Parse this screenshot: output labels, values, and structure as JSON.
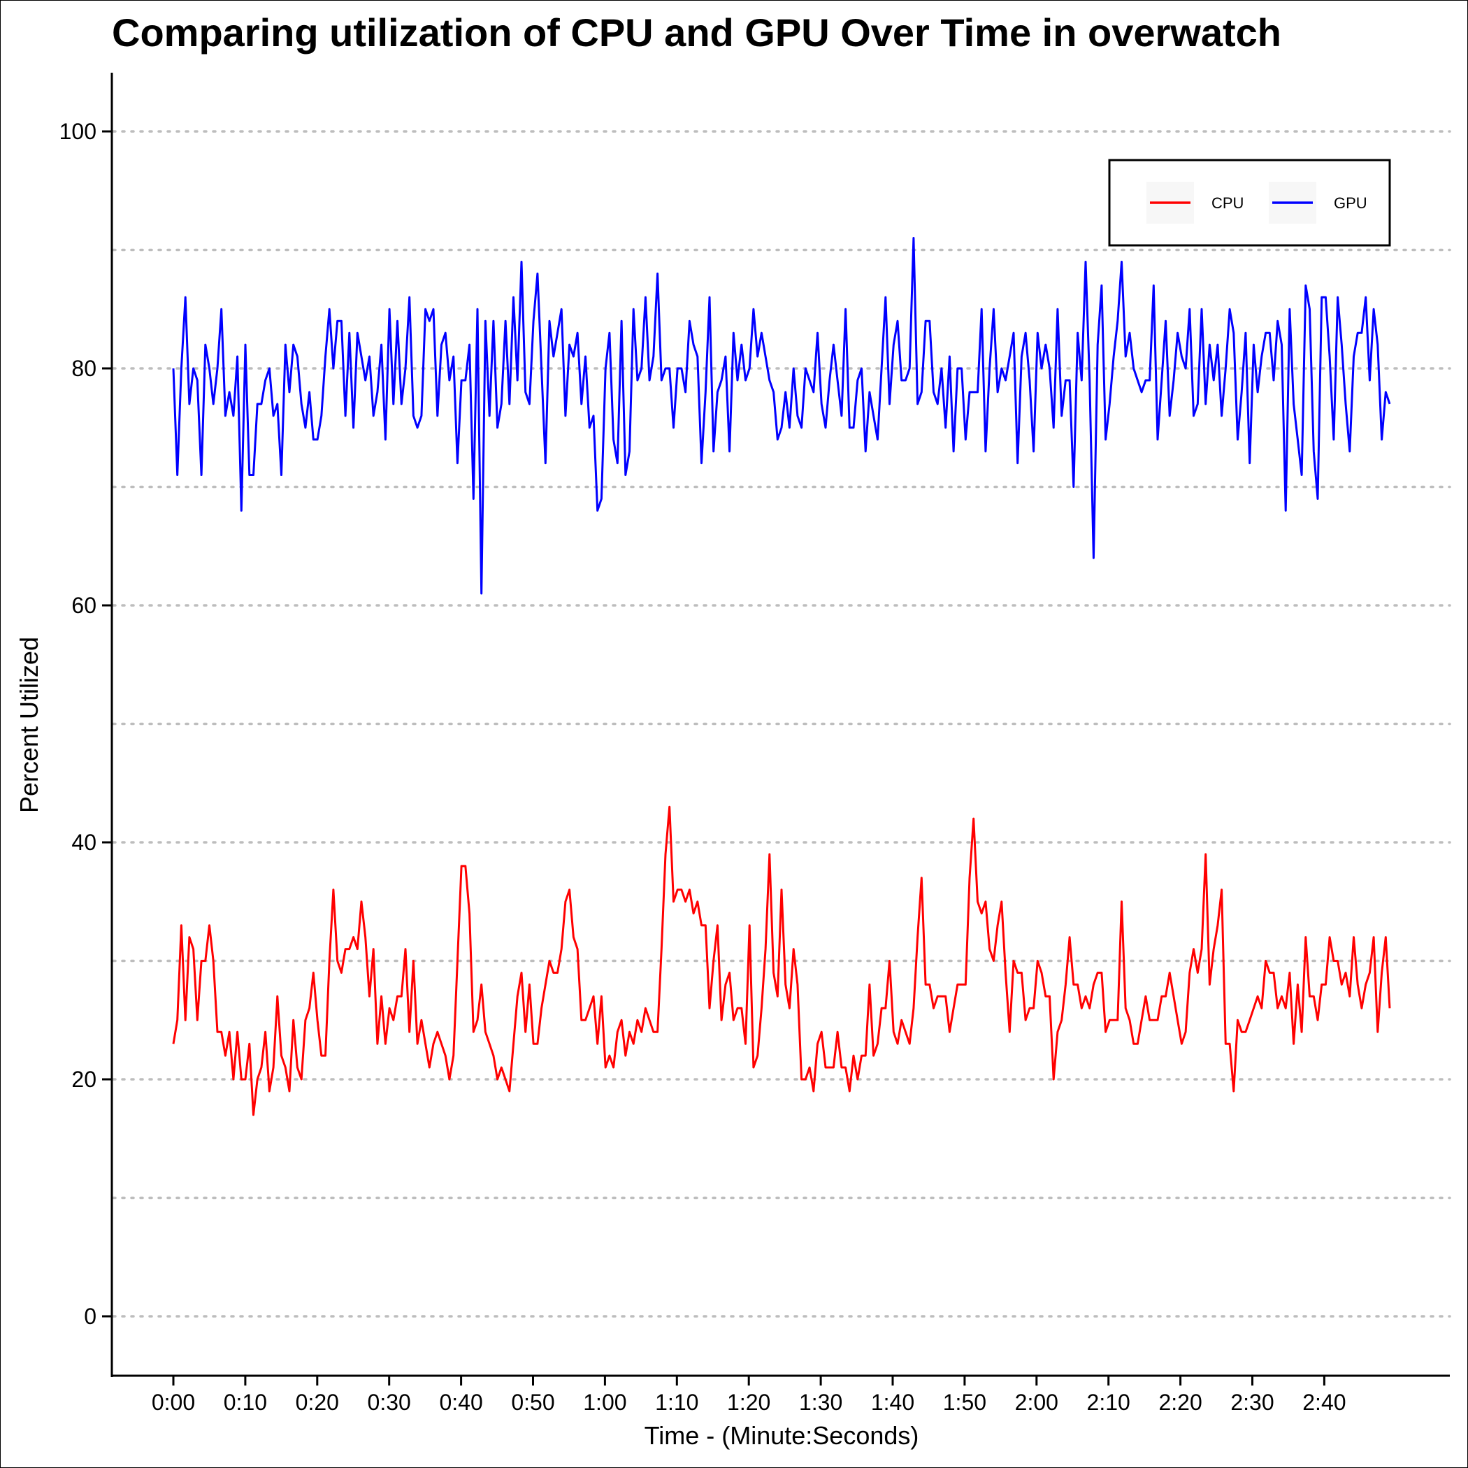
{
  "chart_data": {
    "type": "line",
    "title": "Comparing utilization of CPU and GPU Over Time in overwatch",
    "xlabel": "Time - (Minute:Seconds)",
    "ylabel": "Percent Utilized",
    "x_range_seconds": [
      0,
      170
    ],
    "ylim": [
      0,
      100
    ],
    "x_ticks": [
      "0:00",
      "0:10",
      "0:20",
      "0:30",
      "0:40",
      "0:50",
      "1:00",
      "1:10",
      "1:20",
      "1:30",
      "1:40",
      "1:50",
      "2:00",
      "2:10",
      "2:20",
      "2:30",
      "2:40"
    ],
    "y_ticks": [
      0,
      20,
      40,
      60,
      80,
      100
    ],
    "grid": "horizontal dotted",
    "legend_placement": "top-right",
    "series": [
      {
        "name": "CPU",
        "color": "#ff0000",
        "values": [
          23,
          25,
          33,
          25,
          32,
          31,
          25,
          30,
          30,
          33,
          30,
          24,
          24,
          22,
          24,
          20,
          24,
          20,
          20,
          23,
          17,
          20,
          21,
          24,
          19,
          21,
          27,
          22,
          21,
          19,
          25,
          21,
          20,
          25,
          26,
          29,
          25,
          22,
          22,
          30,
          36,
          30,
          29,
          31,
          31,
          32,
          31,
          35,
          32,
          27,
          31,
          23,
          27,
          23,
          26,
          25,
          27,
          27,
          31,
          24,
          30,
          23,
          25,
          23,
          21,
          23,
          24,
          23,
          22,
          20,
          22,
          30,
          38,
          38,
          34,
          24,
          25,
          28,
          24,
          23,
          22,
          20,
          21,
          20,
          19,
          23,
          27,
          29,
          24,
          28,
          23,
          23,
          26,
          28,
          30,
          29,
          29,
          31,
          35,
          36,
          32,
          31,
          25,
          25,
          26,
          27,
          23,
          27,
          21,
          22,
          21,
          24,
          25,
          22,
          24,
          23,
          25,
          24,
          26,
          25,
          24,
          24,
          31,
          39,
          43,
          35,
          36,
          36,
          35,
          36,
          34,
          35,
          33,
          33,
          26,
          30,
          33,
          25,
          28,
          29,
          25,
          26,
          26,
          23,
          33,
          21,
          22,
          26,
          31,
          39,
          29,
          27,
          36,
          28,
          26,
          31,
          28,
          20,
          20,
          21,
          19,
          23,
          24,
          21,
          21,
          21,
          24,
          21,
          21,
          19,
          22,
          20,
          22,
          22,
          28,
          22,
          23,
          26,
          26,
          30,
          24,
          23,
          25,
          24,
          23,
          26,
          32,
          37,
          28,
          28,
          26,
          27,
          27,
          27,
          24,
          26,
          28,
          28,
          28,
          37,
          42,
          35,
          34,
          35,
          31,
          30,
          33,
          35,
          29,
          24,
          30,
          29,
          29,
          25,
          26,
          26,
          30,
          29,
          27,
          27,
          20,
          24,
          25,
          28,
          32,
          28,
          28,
          26,
          27,
          26,
          28,
          29,
          29,
          24,
          25,
          25,
          25,
          35,
          26,
          25,
          23,
          23,
          25,
          27,
          25,
          25,
          25,
          27,
          27,
          29,
          27,
          25,
          23,
          24,
          29,
          31,
          29,
          31,
          39,
          28,
          31,
          33,
          36,
          23,
          23,
          19,
          25,
          24,
          24,
          25,
          26,
          27,
          26,
          30,
          29,
          29,
          26,
          27,
          26,
          29,
          23,
          28,
          24,
          32,
          27,
          27,
          25,
          28,
          28,
          32,
          30,
          30,
          28,
          29,
          27,
          32,
          28,
          26,
          28,
          29,
          32,
          24,
          29,
          32,
          26
        ]
      },
      {
        "name": "GPU",
        "color": "#0000ff",
        "values": [
          80,
          71,
          80,
          86,
          77,
          80,
          79,
          71,
          82,
          80,
          77,
          80,
          85,
          76,
          78,
          76,
          81,
          68,
          82,
          71,
          71,
          77,
          77,
          79,
          80,
          76,
          77,
          71,
          82,
          78,
          82,
          81,
          77,
          75,
          78,
          74,
          74,
          76,
          81,
          85,
          80,
          84,
          84,
          76,
          83,
          75,
          83,
          81,
          79,
          81,
          76,
          78,
          82,
          74,
          85,
          77,
          84,
          77,
          80,
          86,
          76,
          75,
          76,
          85,
          84,
          85,
          76,
          82,
          83,
          79,
          81,
          72,
          79,
          79,
          82,
          69,
          85,
          61,
          84,
          76,
          84,
          75,
          77,
          84,
          77,
          86,
          79,
          89,
          78,
          77,
          84,
          88,
          80,
          72,
          84,
          81,
          83,
          85,
          76,
          82,
          81,
          83,
          77,
          81,
          75,
          76,
          68,
          69,
          80,
          83,
          74,
          72,
          84,
          71,
          73,
          85,
          79,
          80,
          86,
          79,
          81,
          88,
          79,
          80,
          80,
          75,
          80,
          80,
          78,
          84,
          82,
          81,
          72,
          78,
          86,
          73,
          78,
          79,
          81,
          73,
          83,
          79,
          82,
          79,
          80,
          85,
          81,
          83,
          81,
          79,
          78,
          74,
          75,
          78,
          75,
          80,
          76,
          75,
          80,
          79,
          78,
          83,
          77,
          75,
          79,
          82,
          79,
          76,
          85,
          75,
          75,
          79,
          80,
          73,
          78,
          76,
          74,
          80,
          86,
          77,
          82,
          84,
          79,
          79,
          80,
          91,
          77,
          78,
          84,
          84,
          78,
          77,
          80,
          75,
          81,
          73,
          80,
          80,
          74,
          78,
          78,
          78,
          85,
          73,
          80,
          85,
          78,
          80,
          79,
          81,
          83,
          72,
          81,
          83,
          79,
          73,
          83,
          80,
          82,
          80,
          75,
          85,
          76,
          79,
          79,
          70,
          83,
          79,
          89,
          79,
          64,
          82,
          87,
          74,
          77,
          81,
          84,
          89,
          81,
          83,
          80,
          79,
          78,
          79,
          79,
          87,
          74,
          79,
          84,
          76,
          79,
          83,
          81,
          80,
          85,
          76,
          77,
          85,
          77,
          82,
          79,
          82,
          76,
          80,
          85,
          83,
          74,
          78,
          83,
          72,
          82,
          78,
          81,
          83,
          83,
          79,
          84,
          82,
          68,
          85,
          77,
          74,
          71,
          87,
          85,
          73,
          69,
          86,
          86,
          81,
          74,
          86,
          82,
          77,
          73,
          81,
          83,
          83,
          86,
          79,
          85,
          82,
          74,
          78,
          77
        ]
      }
    ]
  }
}
